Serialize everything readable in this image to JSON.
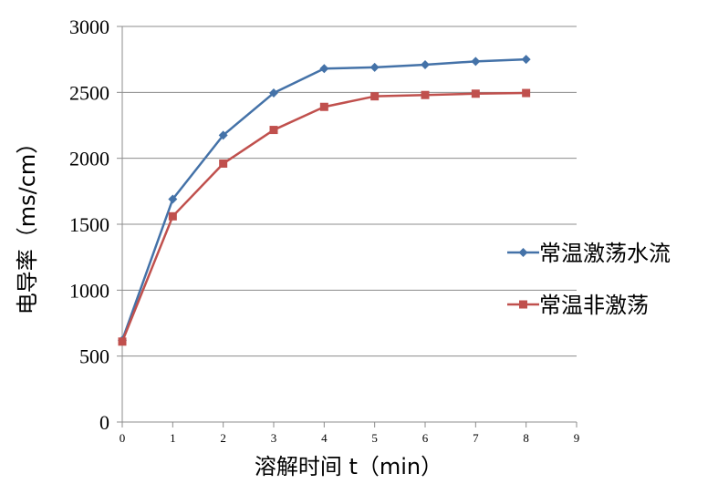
{
  "chart_data": {
    "type": "line",
    "title": "",
    "xlabel": "溶解时间 t（min）",
    "ylabel": "电导率（ms/cm）",
    "xlim": [
      0,
      9
    ],
    "ylim": [
      0,
      3000
    ],
    "x_ticks": [
      "0",
      "1",
      "2",
      "3",
      "4",
      "5",
      "6",
      "7",
      "8",
      "9"
    ],
    "y_ticks": [
      "0",
      "500",
      "1000",
      "1500",
      "2000",
      "2500",
      "3000"
    ],
    "grid": "horizontal",
    "legend_position": "right",
    "x": [
      0,
      1,
      2,
      3,
      4,
      5,
      6,
      7,
      8
    ],
    "series": [
      {
        "name": "常温激荡水流",
        "color": "#4472A8",
        "marker": "diamond",
        "values": [
          620,
          1690,
          2175,
          2495,
          2680,
          2690,
          2710,
          2735,
          2750
        ]
      },
      {
        "name": "常温非激荡",
        "color": "#C0504D",
        "marker": "square",
        "values": [
          610,
          1560,
          1960,
          2215,
          2390,
          2470,
          2480,
          2490,
          2495
        ]
      }
    ]
  }
}
